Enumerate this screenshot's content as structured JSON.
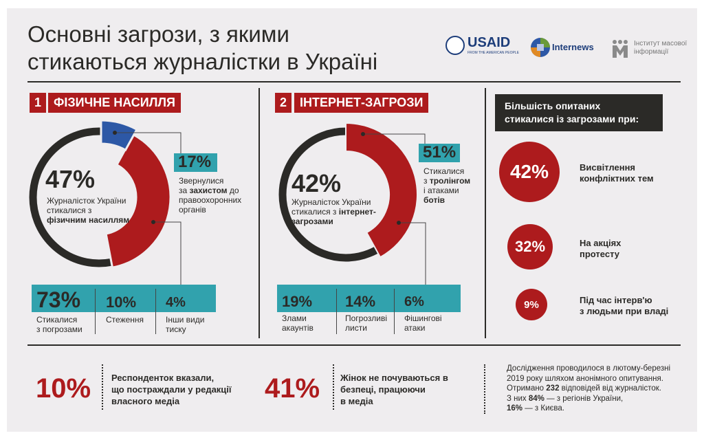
{
  "title": {
    "line1": "Основні загрози, з якими",
    "line2": "стикаються журналістки в Україні"
  },
  "logos": {
    "usaid": "USAID",
    "usaid_sub": "FROM THE AMERICAN PEOPLE",
    "internews": "Internews",
    "imi_line1": "Інститут масової",
    "imi_line2": "інформації"
  },
  "colors": {
    "red": "#ad1b1d",
    "blue": "#2d58a6",
    "teal": "#31a2ad",
    "dark": "#2b2a27",
    "bg": "#efedef"
  },
  "section1": {
    "number": "1",
    "title": "ФІЗИЧНЕ НАСИЛЛЯ",
    "percent": 47,
    "percent_label": "47%",
    "desc_1": "Журналісток України",
    "desc_2": "стикалися з ",
    "desc_bold": "фізичним насиллям",
    "callout": {
      "percent": 17,
      "label": "17%",
      "text_1": "Звернулися",
      "text_2": "за ",
      "text_bold": "захистом",
      "text_3": " до",
      "text_4": "правоохоронних",
      "text_5": "органів"
    },
    "stats": [
      {
        "label": "73%",
        "text_1": "Стикалися",
        "text_2": "з погрозами"
      },
      {
        "label": "10%",
        "text_1": "Стеження",
        "text_2": ""
      },
      {
        "label": "4%",
        "text_1": "Інши види",
        "text_2": "тиску"
      }
    ]
  },
  "section2": {
    "number": "2",
    "title": "ІНТЕРНЕТ-ЗАГРОЗИ",
    "percent": 42,
    "percent_label": "42%",
    "desc_1": "Журналісток України",
    "desc_2": "стикалися з ",
    "desc_bold": "інтернет-загрозами",
    "callout": {
      "label": "51%",
      "text_1": "Стикалися",
      "text_2": "з ",
      "text_bold": "тролінгом",
      "text_3": "і атаками",
      "text_4": "ботів"
    },
    "stats": [
      {
        "label": "19%",
        "text_1": "Злами",
        "text_2": "акаунтів"
      },
      {
        "label": "14%",
        "text_1": "Погрозливі",
        "text_2": "листи"
      },
      {
        "label": "6%",
        "text_1": "Фішингові",
        "text_2": "атаки"
      }
    ]
  },
  "section3": {
    "header_1": "Більшість опитаних",
    "header_2": "стикалися із загрозами при:",
    "items": [
      {
        "label": "42%",
        "text_1": "Висвітлення",
        "text_2": "конфліктних тем"
      },
      {
        "label": "32%",
        "text_1": "На акціях",
        "text_2": "протесту"
      },
      {
        "label": "9%",
        "text_1": "Під час інтерв'ю",
        "text_2": "з людьми при владі"
      }
    ]
  },
  "footer": {
    "stat1": {
      "label": "10%",
      "text_1": "Респонденток вказали,",
      "text_2": "що постраждали у редакції",
      "text_3": "власного медіа"
    },
    "stat2": {
      "label": "41%",
      "text_1": "Жінок не почуваються в",
      "text_2": "безпеці, працюючи",
      "text_3": "в медіа"
    },
    "note": {
      "line1": "Дослідження проводилося в лютому-березні",
      "line2": "2019 року шляхом анонімного опитування.",
      "line3a": "Отримано ",
      "line3b": "232",
      "line3c": " відповідей від журналісток.",
      "line4a": "З них ",
      "line4b": "84%",
      "line4c": " — з регіонів України,",
      "line5a": "16%",
      "line5b": " — з Києва."
    }
  }
}
